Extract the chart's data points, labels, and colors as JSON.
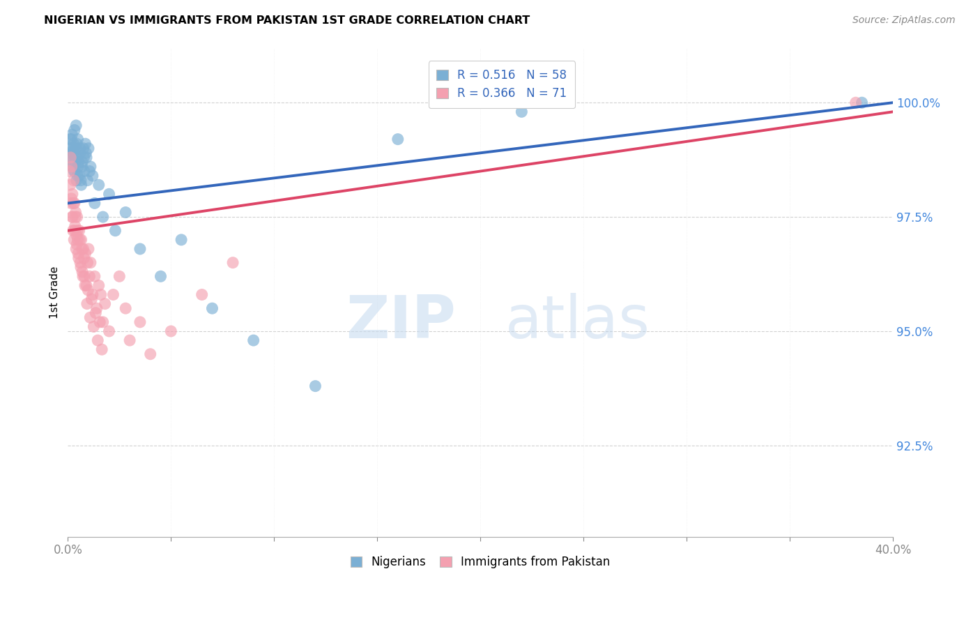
{
  "title": "NIGERIAN VS IMMIGRANTS FROM PAKISTAN 1ST GRADE CORRELATION CHART",
  "source": "Source: ZipAtlas.com",
  "ylabel": "1st Grade",
  "yticks": [
    92.5,
    95.0,
    97.5,
    100.0
  ],
  "ytick_labels": [
    "92.5%",
    "95.0%",
    "97.5%",
    "100.0%"
  ],
  "xmin": 0.0,
  "xmax": 40.0,
  "ymin": 90.5,
  "ymax": 101.2,
  "legend_blue_label": "R = 0.516   N = 58",
  "legend_pink_label": "R = 0.366   N = 71",
  "legend_bottom_blue": "Nigerians",
  "legend_bottom_pink": "Immigrants from Pakistan",
  "blue_color": "#7BAFD4",
  "pink_color": "#F4A0B0",
  "blue_line_color": "#3366BB",
  "pink_line_color": "#DD4466",
  "watermark_zip": "ZIP",
  "watermark_atlas": "atlas",
  "nigerians_x": [
    0.1,
    0.15,
    0.18,
    0.2,
    0.22,
    0.25,
    0.28,
    0.3,
    0.32,
    0.35,
    0.38,
    0.4,
    0.42,
    0.45,
    0.48,
    0.5,
    0.55,
    0.6,
    0.65,
    0.7,
    0.75,
    0.8,
    0.85,
    0.9,
    0.95,
    1.0,
    1.1,
    1.2,
    1.3,
    1.5,
    1.7,
    2.0,
    2.3,
    2.8,
    3.5,
    4.5,
    5.5,
    7.0,
    9.0,
    12.0,
    16.0,
    22.0,
    38.5,
    0.12,
    0.17,
    0.23,
    0.27,
    0.33,
    0.37,
    0.43,
    0.47,
    0.52,
    0.58,
    0.63,
    0.68,
    0.78,
    0.88,
    1.05
  ],
  "nigerians_y": [
    99.2,
    99.0,
    98.8,
    99.3,
    98.6,
    98.9,
    99.1,
    98.5,
    99.4,
    98.7,
    99.0,
    99.5,
    98.3,
    98.8,
    99.2,
    98.6,
    98.4,
    98.9,
    98.2,
    98.7,
    99.0,
    98.5,
    99.1,
    98.8,
    98.3,
    99.0,
    98.6,
    98.4,
    97.8,
    98.2,
    97.5,
    98.0,
    97.2,
    97.6,
    96.8,
    96.2,
    97.0,
    95.5,
    94.8,
    93.8,
    99.2,
    99.8,
    100.0,
    98.9,
    99.2,
    98.7,
    99.0,
    98.5,
    98.8,
    99.1,
    98.4,
    98.7,
    99.0,
    98.3,
    98.6,
    98.8,
    98.9,
    98.5
  ],
  "pakistan_x": [
    0.08,
    0.12,
    0.15,
    0.18,
    0.2,
    0.22,
    0.25,
    0.28,
    0.3,
    0.32,
    0.35,
    0.38,
    0.4,
    0.42,
    0.45,
    0.48,
    0.5,
    0.55,
    0.6,
    0.65,
    0.7,
    0.75,
    0.8,
    0.85,
    0.9,
    0.95,
    1.0,
    1.05,
    1.1,
    1.2,
    1.3,
    1.4,
    1.5,
    1.6,
    1.7,
    1.8,
    2.0,
    2.2,
    2.5,
    2.8,
    3.0,
    3.5,
    4.0,
    5.0,
    6.5,
    8.0,
    0.13,
    0.17,
    0.23,
    0.27,
    0.33,
    0.37,
    0.43,
    0.47,
    0.52,
    0.58,
    0.63,
    0.68,
    0.73,
    0.78,
    0.83,
    0.93,
    0.98,
    1.08,
    1.15,
    1.25,
    1.35,
    1.45,
    1.55,
    1.65,
    38.2
  ],
  "pakistan_y": [
    98.5,
    98.2,
    97.8,
    98.6,
    97.5,
    98.0,
    97.2,
    98.3,
    97.0,
    97.8,
    97.3,
    97.6,
    96.8,
    97.1,
    97.5,
    97.0,
    96.7,
    97.2,
    96.5,
    97.0,
    96.3,
    96.8,
    96.2,
    96.7,
    96.0,
    96.5,
    96.8,
    96.2,
    96.5,
    95.8,
    96.2,
    95.5,
    96.0,
    95.8,
    95.2,
    95.6,
    95.0,
    95.8,
    96.2,
    95.5,
    94.8,
    95.2,
    94.5,
    95.0,
    95.8,
    96.5,
    98.8,
    97.9,
    97.5,
    97.8,
    97.2,
    97.5,
    96.9,
    97.2,
    96.6,
    97.0,
    96.4,
    96.8,
    96.2,
    96.6,
    96.0,
    95.6,
    95.9,
    95.3,
    95.7,
    95.1,
    95.4,
    94.8,
    95.2,
    94.6,
    100.0
  ],
  "nig_trend_x0": 0.0,
  "nig_trend_y0": 97.8,
  "nig_trend_x1": 40.0,
  "nig_trend_y1": 100.0,
  "pak_trend_x0": 0.0,
  "pak_trend_y0": 97.2,
  "pak_trend_x1": 40.0,
  "pak_trend_y1": 99.8
}
